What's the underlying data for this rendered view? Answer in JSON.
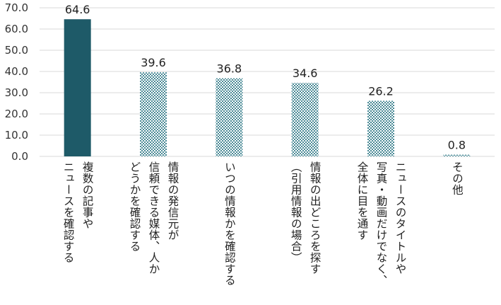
{
  "chart_data": {
    "type": "bar",
    "categories": [
      "複数の記事や\nニュースを確認する",
      "情報の発信元が\n信頼できる媒体、人か\nどうかを確認する",
      "いつの情報かを確認する",
      "情報の出どころを探す\n（引用情報の場合）",
      "ニュースのタイトルや\n写真・動画だけでなく、\n全体に目を通す",
      "その他"
    ],
    "values": [
      64.6,
      39.6,
      36.8,
      34.6,
      26.2,
      0.8
    ],
    "value_labels": [
      "64.6",
      "39.6",
      "36.8",
      "34.6",
      "26.2",
      "0.8"
    ],
    "y_ticks": [
      "0.0",
      "10.0",
      "20.0",
      "30.0",
      "40.0",
      "50.0",
      "60.0",
      "70.0"
    ],
    "ylim": [
      0,
      70
    ],
    "grid": true,
    "colors": {
      "highlight": "#1e5a68",
      "pattern_light": "#ffffff",
      "pattern_dark": "#4a8a96",
      "gridline": "#d9d9d9"
    }
  }
}
